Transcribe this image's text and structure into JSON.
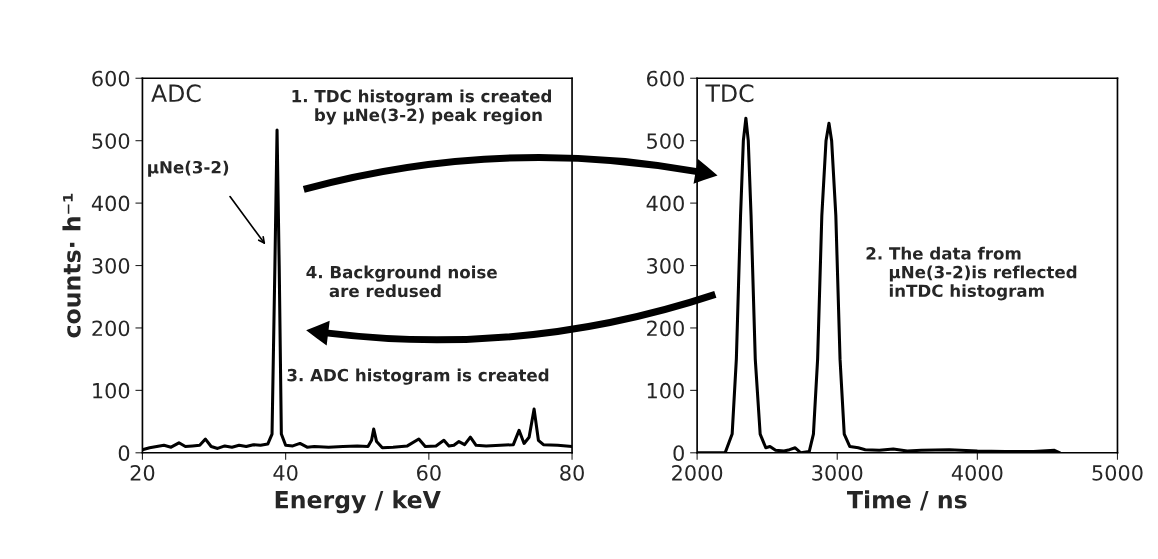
{
  "chart_data": [
    {
      "type": "line",
      "title": "ADC",
      "xlabel": "Energy / keV",
      "ylabel": "counts· h⁻¹",
      "xlim": [
        20,
        80
      ],
      "xticks": [
        20,
        40,
        60,
        80
      ],
      "ylim": [
        0,
        600
      ],
      "yticks": [
        0,
        100,
        200,
        300,
        400,
        500,
        600
      ],
      "grid": false,
      "legend": false,
      "marker": "none",
      "line_style": "solid",
      "series": [
        {
          "color": "#000000",
          "x": [
            20,
            21,
            22,
            23,
            24,
            25.1,
            26,
            27,
            28,
            28.8,
            29.6,
            30.5,
            31.5,
            32.5,
            33.5,
            34.5,
            35.5,
            36.5,
            37.5,
            38.1,
            38.5,
            38.8,
            39.1,
            39.4,
            40,
            41,
            42,
            43,
            44,
            46,
            48,
            50,
            51.5,
            52,
            52.3,
            52.7,
            53.5,
            55,
            57,
            58.6,
            59.5,
            61,
            62.1,
            62.8,
            63.5,
            64.2,
            65,
            65.8,
            66.6,
            68,
            70,
            71.8,
            72.6,
            73.3,
            74,
            74.7,
            75.3,
            76,
            78,
            80
          ],
          "values": [
            5,
            8,
            10,
            12,
            9,
            16,
            10,
            11,
            12,
            22,
            10,
            7,
            11,
            9,
            12,
            10,
            13,
            12,
            14,
            30,
            300,
            517,
            300,
            30,
            12,
            11,
            15,
            9,
            10,
            9,
            10,
            11,
            10,
            20,
            38,
            18,
            8,
            9,
            11,
            22,
            10,
            11,
            20,
            11,
            12,
            18,
            13,
            25,
            12,
            11,
            12,
            13,
            36,
            15,
            25,
            70,
            20,
            13,
            12,
            10
          ]
        }
      ],
      "annotations": [
        "1. TDC histogram is created\n    by μNe(3-2) peak region",
        "4. Background noise\n    are redused",
        "3. ADC histogram is created",
        "μNe(3-2)"
      ]
    },
    {
      "type": "line",
      "title": "TDC",
      "xlabel": "Time / ns",
      "xlim": [
        2000,
        5000
      ],
      "xticks": [
        2000,
        3000,
        4000,
        5000
      ],
      "ylim": [
        0,
        600
      ],
      "yticks": [
        0,
        100,
        200,
        300,
        400,
        500,
        600
      ],
      "grid": false,
      "legend": false,
      "marker": "none",
      "line_style": "solid",
      "series": [
        {
          "color": "#000000",
          "x": [
            2000,
            2200,
            2250,
            2280,
            2310,
            2330,
            2348,
            2365,
            2385,
            2415,
            2450,
            2490,
            2520,
            2560,
            2620,
            2660,
            2700,
            2740,
            2800,
            2830,
            2860,
            2890,
            2920,
            2941,
            2960,
            2990,
            3020,
            3050,
            3090,
            3150,
            3200,
            3300,
            3400,
            3500,
            3600,
            3800,
            4000,
            4200,
            4400,
            4550,
            4589
          ],
          "values": [
            0,
            0,
            30,
            150,
            380,
            500,
            536,
            500,
            380,
            150,
            30,
            8,
            10,
            4,
            3,
            5,
            8,
            0,
            2,
            30,
            150,
            380,
            500,
            528,
            500,
            380,
            150,
            30,
            10,
            8,
            5,
            4,
            6,
            3,
            4,
            5,
            3,
            2,
            2,
            4,
            0
          ]
        }
      ],
      "annotations": [
        "2. The data from\n    μNe(3-2)is reflected\n    inTDC histogram"
      ]
    }
  ]
}
